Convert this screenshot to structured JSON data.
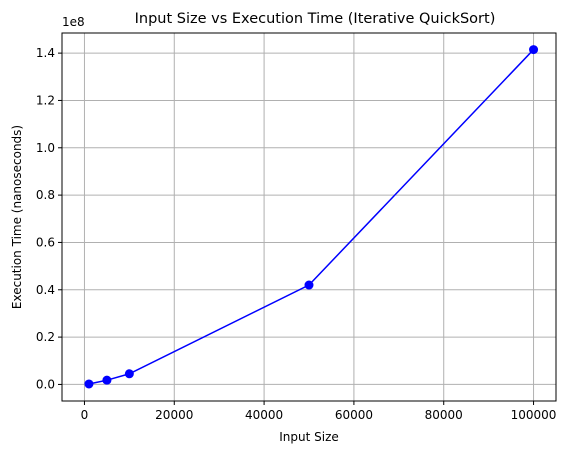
{
  "chart_data": {
    "type": "line",
    "title": "Input Size vs Execution Time (Iterative QuickSort)",
    "xlabel": "Input Size",
    "ylabel": "Execution Time (nanoseconds)",
    "y_offset_label": "1e8",
    "xlim": [
      -5000,
      105000
    ],
    "ylim": [
      -0.07,
      1.485
    ],
    "y_scale_factor": 100000000,
    "x_ticks": [
      0,
      20000,
      40000,
      60000,
      80000,
      100000
    ],
    "x_tick_labels": [
      "0",
      "20000",
      "40000",
      "60000",
      "80000",
      "100000"
    ],
    "y_ticks": [
      0.0,
      0.2,
      0.4,
      0.6,
      0.8,
      1.0,
      1.2,
      1.4
    ],
    "y_tick_labels": [
      "0.0",
      "0.2",
      "0.4",
      "0.6",
      "0.8",
      "1.0",
      "1.2",
      "1.4"
    ],
    "grid": true,
    "series": [
      {
        "color": "#0000ff",
        "marker": "circle",
        "x": [
          1000,
          5000,
          10000,
          50000,
          100000
        ],
        "y": [
          0.002,
          0.018,
          0.045,
          0.42,
          1.415
        ]
      }
    ]
  }
}
